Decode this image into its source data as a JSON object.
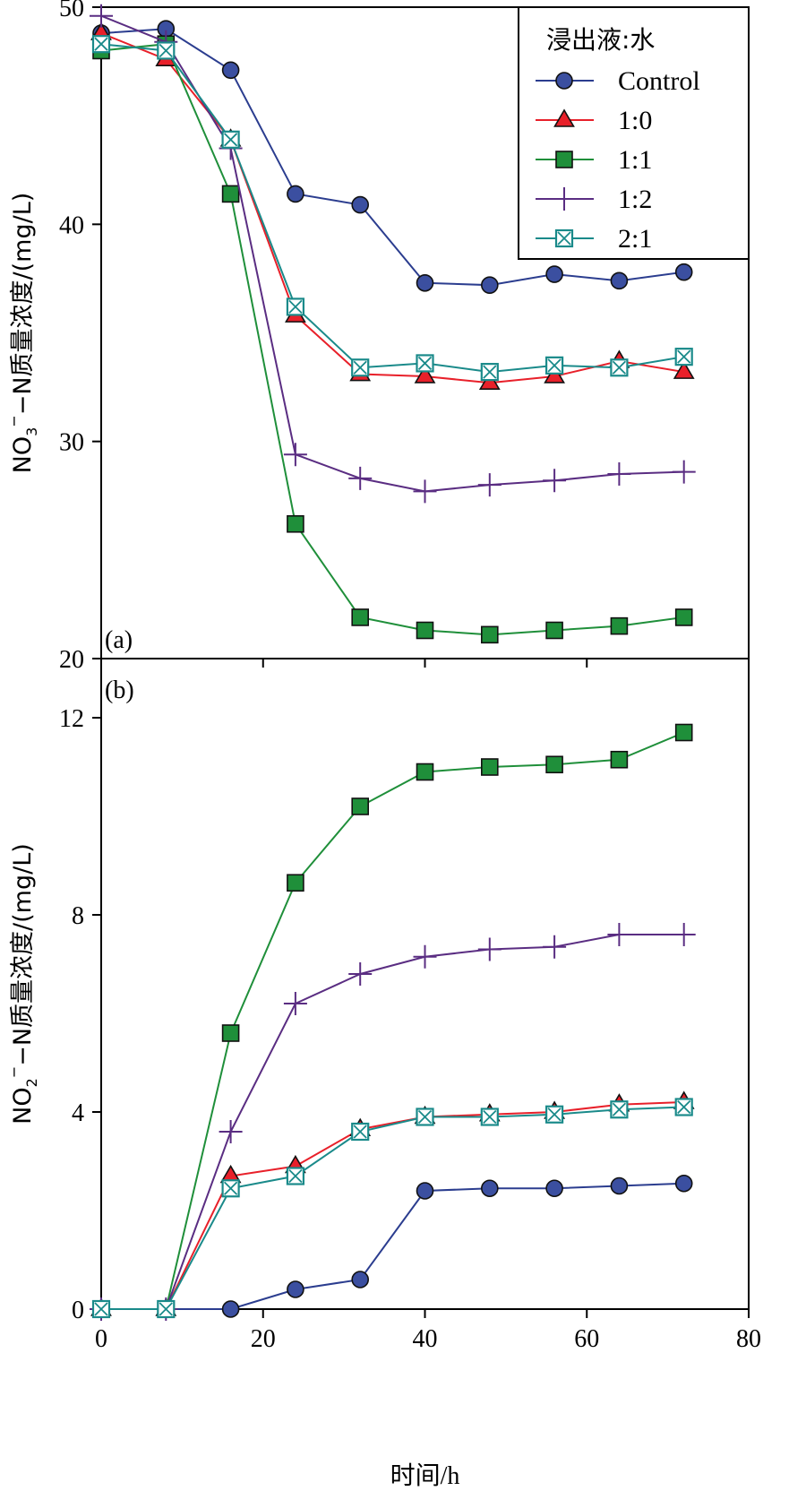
{
  "chart_data": [
    {
      "type": "line",
      "panel_label": "(a)",
      "ylabel": {
        "main": "NO",
        "sub": "3",
        "sup": "−",
        "rest": "−N质量浓度/(mg/L)"
      },
      "ylim": [
        20,
        50
      ],
      "yticks": [
        20,
        30,
        40,
        50
      ],
      "xlim": [
        0,
        80
      ],
      "x": [
        0,
        8,
        16,
        24,
        32,
        40,
        48,
        56,
        64,
        72
      ],
      "legend": {
        "title": "浸出液:水",
        "position": "top-right"
      },
      "series": [
        {
          "name": "Control",
          "marker": "circle",
          "color": "#2b3d8f",
          "fill": "#3b4fa0",
          "values": [
            48.8,
            49.0,
            47.1,
            41.4,
            40.9,
            37.3,
            37.2,
            37.7,
            37.4,
            37.8
          ]
        },
        {
          "name": "1:0",
          "marker": "triangle",
          "color": "#e8202a",
          "fill": "#e8202a",
          "values": [
            48.8,
            47.6,
            43.9,
            35.8,
            33.1,
            33.0,
            32.7,
            33.0,
            33.7,
            33.2
          ]
        },
        {
          "name": "1:1",
          "marker": "square",
          "color": "#1f8f3a",
          "fill": "#1f8f3a",
          "values": [
            48.0,
            48.3,
            41.4,
            26.2,
            21.9,
            21.3,
            21.1,
            21.3,
            21.5,
            21.9
          ]
        },
        {
          "name": "1:2",
          "marker": "plus",
          "color": "#5a2d82",
          "fill": "none",
          "values": [
            49.6,
            48.4,
            43.5,
            29.4,
            28.3,
            27.7,
            28.0,
            28.2,
            28.5,
            28.6
          ]
        },
        {
          "name": "2:1",
          "marker": "boxx",
          "color": "#1a8a8a",
          "fill": "#ffffff",
          "values": [
            48.3,
            48.0,
            43.9,
            36.2,
            33.4,
            33.6,
            33.2,
            33.5,
            33.4,
            33.9
          ]
        }
      ]
    },
    {
      "type": "line",
      "panel_label": "(b)",
      "xlabel": "时间/h",
      "ylabel": {
        "main": "NO",
        "sub": "2",
        "sup": "−",
        "rest": "−N质量浓度/(mg/L)"
      },
      "ylim": [
        0,
        13.2
      ],
      "yticks": [
        0,
        4,
        8,
        12
      ],
      "xlim": [
        0,
        80
      ],
      "xticks": [
        0,
        20,
        40,
        60,
        80
      ],
      "x": [
        0,
        8,
        16,
        24,
        32,
        40,
        48,
        56,
        64,
        72
      ],
      "series": [
        {
          "name": "Control",
          "marker": "circle",
          "color": "#2b3d8f",
          "fill": "#3b4fa0",
          "values": [
            0,
            0,
            0,
            0.4,
            0.6,
            2.4,
            2.45,
            2.45,
            2.5,
            2.55
          ]
        },
        {
          "name": "1:0",
          "marker": "triangle",
          "color": "#e8202a",
          "fill": "#e8202a",
          "values": [
            0,
            0,
            2.7,
            2.9,
            3.65,
            3.9,
            3.95,
            4.0,
            4.15,
            4.2
          ]
        },
        {
          "name": "1:1",
          "marker": "square",
          "color": "#1f8f3a",
          "fill": "#1f8f3a",
          "values": [
            0,
            0,
            5.6,
            8.65,
            10.2,
            10.9,
            11.0,
            11.05,
            11.15,
            11.7
          ]
        },
        {
          "name": "1:2",
          "marker": "plus",
          "color": "#5a2d82",
          "fill": "none",
          "values": [
            0,
            0,
            3.6,
            6.2,
            6.8,
            7.15,
            7.3,
            7.35,
            7.6,
            7.6
          ]
        },
        {
          "name": "2:1",
          "marker": "boxx",
          "color": "#1a8a8a",
          "fill": "#ffffff",
          "values": [
            0,
            0,
            2.45,
            2.7,
            3.6,
            3.9,
            3.9,
            3.95,
            4.05,
            4.1
          ]
        }
      ]
    }
  ]
}
